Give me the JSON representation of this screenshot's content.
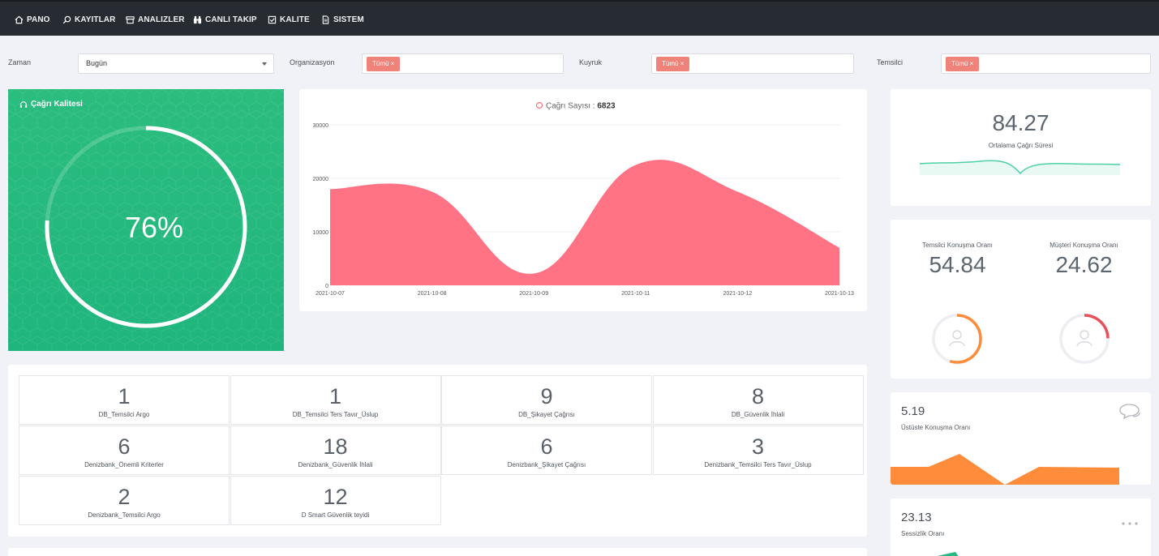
{
  "nav": [
    {
      "label": "PANO",
      "icon": "home-icon"
    },
    {
      "label": "KAYITLAR",
      "icon": "search-icon"
    },
    {
      "label": "ANALIZLER",
      "icon": "archive-icon"
    },
    {
      "label": "CANLI TAKIP",
      "icon": "binoculars-icon"
    },
    {
      "label": "KALITE",
      "icon": "check-square-icon"
    },
    {
      "label": "SISTEM",
      "icon": "file-icon"
    }
  ],
  "filters": {
    "zaman": {
      "label": "Zaman",
      "value": "Bugün"
    },
    "organizasyon": {
      "label": "Organizasyon",
      "tag": "Tümü ×"
    },
    "kuyruk": {
      "label": "Kuyruk",
      "tag": "Tümü ×"
    },
    "temsilci": {
      "label": "Temsilci",
      "tag": "Tümü ×"
    }
  },
  "quality": {
    "title": "Çağrı Kalitesi",
    "value": "76%",
    "percent": 76
  },
  "chart_data": {
    "type": "area",
    "title": "Çağrı Sayısı",
    "total_label": "6823",
    "categories": [
      "2021-10-07",
      "2021-10-08",
      "2021-10-09",
      "2021-10-11",
      "2021-10-12",
      "2021-10-13"
    ],
    "values": [
      18000,
      17500,
      2200,
      22500,
      17500,
      7000
    ],
    "ylim": [
      0,
      30000
    ],
    "yticks": [
      "30000",
      "20000",
      "10000",
      "0"
    ],
    "color": "#ff7385"
  },
  "avg_duration": {
    "value": "84.27",
    "label": "Ortalama Çağrı Süresi"
  },
  "talk_ratio": {
    "agent": {
      "label": "Temsilci Konuşma Oranı",
      "value": "54.84",
      "percent": 54.84
    },
    "customer": {
      "label": "Müşteri Konuşma Oranı",
      "value": "24.62",
      "percent": 24.62
    }
  },
  "overlap": {
    "value": "5.19",
    "label": "Üstüste Konuşma Oranı"
  },
  "silence": {
    "value": "23.13",
    "label": "Sessizlik Oranı"
  },
  "kpis": [
    {
      "value": "1",
      "label": "DB_Temsilci Argo"
    },
    {
      "value": "1",
      "label": "DB_Temsilci Ters Tavır_Üslup"
    },
    {
      "value": "9",
      "label": "DB_Şikayet Çağrısı"
    },
    {
      "value": "8",
      "label": "DB_Güvenlik İhlali"
    },
    {
      "value": "6",
      "label": "Denizbank_Önemli Kriterler"
    },
    {
      "value": "18",
      "label": "Denizbank_Güvenlik İhlali"
    },
    {
      "value": "6",
      "label": "Denizbank_Şikayet Çağrısı"
    },
    {
      "value": "3",
      "label": "Denizbank_Temsilci Ters Tavır_Üslup"
    },
    {
      "value": "2",
      "label": "Denizbank_Temsilci Argo"
    },
    {
      "value": "12",
      "label": "D Smart Güvenlik teyidi"
    }
  ],
  "colors": {
    "accent_green": "#24b97e",
    "chart_red": "#ff7385",
    "orange": "#ff8c3a",
    "teal_line": "#4fd1a5"
  }
}
